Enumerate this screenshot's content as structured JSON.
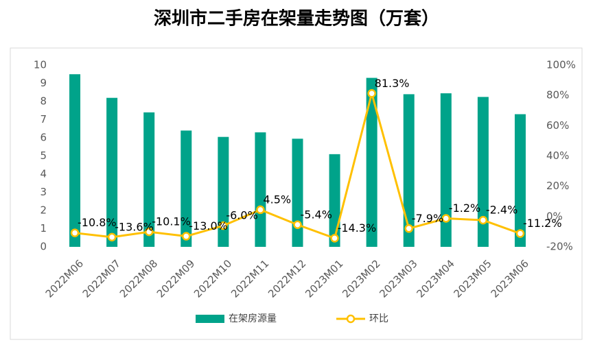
{
  "chart_data": {
    "type": "bar-line",
    "title": "深圳市二手房在架量走势图（万套）",
    "categories": [
      "2022M06",
      "2022M07",
      "2022M08",
      "2022M09",
      "2022M10",
      "2022M11",
      "2022M12",
      "2023M01",
      "2023M02",
      "2023M03",
      "2023M04",
      "2023M05",
      "2023M06"
    ],
    "series": [
      {
        "name": "在架房源量",
        "type": "bar",
        "color": "#00a38a",
        "values": [
          9.5,
          8.2,
          7.4,
          6.4,
          6.05,
          6.3,
          5.95,
          5.1,
          9.3,
          8.4,
          8.45,
          8.25,
          7.3
        ]
      },
      {
        "name": "环比",
        "type": "line",
        "axis": "y2",
        "color": "#ffc000",
        "values": [
          -10.8,
          -13.6,
          -10.1,
          -13.0,
          -6.0,
          4.5,
          -5.4,
          -14.3,
          81.3,
          -7.9,
          -1.2,
          -2.4,
          -11.2
        ],
        "value_labels": [
          "-10.8%",
          "-13.6%",
          "-10.1%",
          "-13.0%",
          "-6.0%",
          "4.5%",
          "-5.4%",
          "-14.3%",
          "81.3%",
          "-7.9%",
          "-1.2%",
          "-2.4%",
          "-11.2%"
        ]
      }
    ],
    "ylim": [
      0,
      10
    ],
    "yticks": [
      0,
      1,
      2,
      3,
      4,
      5,
      6,
      7,
      8,
      9,
      10
    ],
    "y2lim": [
      -20,
      100
    ],
    "y2ticks": [
      {
        "value": -20,
        "label": "-20%"
      },
      {
        "value": 0,
        "label": "0%"
      },
      {
        "value": 20,
        "label": "20%"
      },
      {
        "value": 40,
        "label": "40%"
      },
      {
        "value": 60,
        "label": "60%"
      },
      {
        "value": 80,
        "label": "80%"
      },
      {
        "value": 100,
        "label": "100%"
      }
    ],
    "legend": "bottom"
  }
}
